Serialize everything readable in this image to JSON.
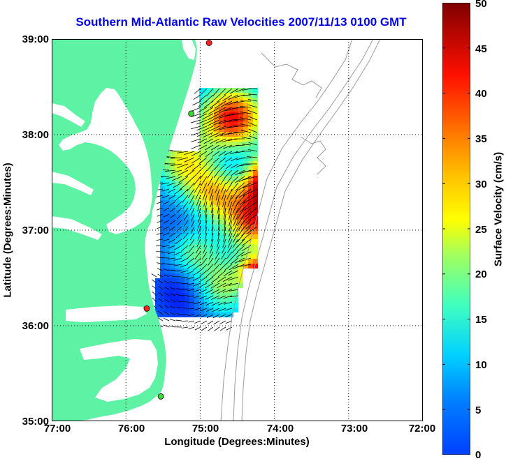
{
  "map": {
    "title": "Southern Mid-Atlantic Raw Velocities 2007/11/13 0100 GMT",
    "xlabel": "Longitude (Degrees:Minutes)",
    "ylabel": "Latitude (Degrees:Minutes)",
    "lon_ticks": [
      "77:00",
      "76:00",
      "75:00",
      "74:00",
      "73:00",
      "72:00"
    ],
    "lat_ticks": [
      "39:00",
      "38:00",
      "37:00",
      "36:00",
      "35:00"
    ],
    "lon_range": [
      -77,
      -72
    ],
    "lat_range": [
      35,
      39
    ],
    "grid": "dotted",
    "land_color": "#5ef2a4",
    "bathymetry_color": "#9a9a9a",
    "arrow_color": "#000000",
    "stations": [
      {
        "lon": -74.88,
        "lat": 38.96,
        "color": "#ff2020"
      },
      {
        "lon": -75.12,
        "lat": 38.22,
        "color": "#33dd33"
      },
      {
        "lon": -75.72,
        "lat": 36.18,
        "color": "#ff2020"
      },
      {
        "lon": -75.53,
        "lat": 35.26,
        "color": "#33dd33"
      }
    ]
  },
  "colorbar": {
    "label": "Surface Velocity (cm/s)",
    "ticks": [
      "50",
      "45",
      "40",
      "35",
      "30",
      "25",
      "20",
      "15",
      "10",
      "5",
      "0"
    ],
    "min": 0,
    "max": 50,
    "colormap": "jet"
  }
}
